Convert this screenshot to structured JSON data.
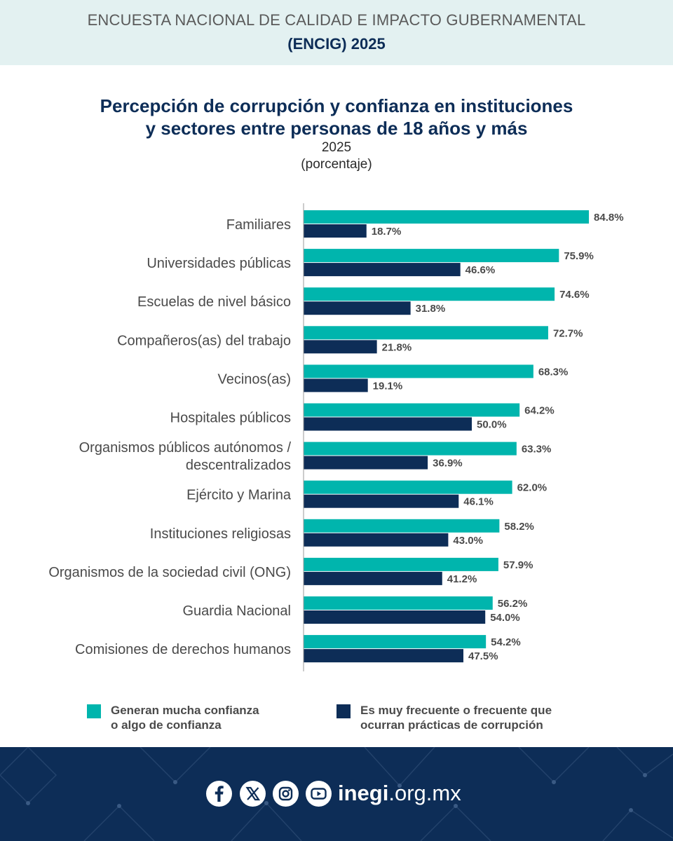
{
  "header": {
    "line1": "ENCUESTA NACIONAL DE CALIDAD E IMPACTO GUBERNAMENTAL",
    "line2": "(ENCIG) 2025"
  },
  "title": {
    "line1": "Percepción de corrupción y confianza en instituciones",
    "line2": "y sectores entre personas de 18 años y más",
    "year": "2025",
    "unit": "(porcentaje)"
  },
  "colors": {
    "confianza": "#00b5ad",
    "corrupcion": "#0d2d57",
    "footer": "#0d2d57",
    "header_band": "#e3f1f1"
  },
  "chart_data": {
    "type": "bar",
    "orientation": "horizontal",
    "categories": [
      "Familiares",
      "Universidades públicas",
      "Escuelas de nivel básico",
      "Compañeros(as) del trabajo",
      "Vecinos(as)",
      "Hospitales públicos",
      "Organismos públicos autónomos / descentralizados",
      "Ejército y Marina",
      "Instituciones religiosas",
      "Organismos de la sociedad civil (ONG)",
      "Guardia Nacional",
      "Comisiones de derechos humanos"
    ],
    "category_lines": [
      [
        "Familiares"
      ],
      [
        "Universidades públicas"
      ],
      [
        "Escuelas de nivel básico"
      ],
      [
        "Compañeros(as) del trabajo"
      ],
      [
        "Vecinos(as)"
      ],
      [
        "Hospitales públicos"
      ],
      [
        "Organismos públicos autónomos /",
        "descentralizados"
      ],
      [
        "Ejército y Marina"
      ],
      [
        "Instituciones religiosas"
      ],
      [
        "Organismos de la sociedad civil (ONG)"
      ],
      [
        "Guardia Nacional"
      ],
      [
        "Comisiones de derechos humanos"
      ]
    ],
    "series": [
      {
        "name": "Generan mucha confianza o algo de confianza",
        "values": [
          84.8,
          75.9,
          74.6,
          72.7,
          68.3,
          64.2,
          63.3,
          62.0,
          58.2,
          57.9,
          56.2,
          54.2
        ],
        "labels": [
          "84.8%",
          "75.9%",
          "74.6%",
          "72.7%",
          "68.3%",
          "64.2%",
          "63.3%",
          "62.0%",
          "58.2%",
          "57.9%",
          "56.2%",
          "54.2%"
        ]
      },
      {
        "name": "Es muy frecuente o frecuente que ocurran prácticas de corrupción",
        "values": [
          18.7,
          46.6,
          31.8,
          21.8,
          19.1,
          50.0,
          36.9,
          46.1,
          43.0,
          41.2,
          54.0,
          47.5
        ],
        "labels": [
          "18.7%",
          "46.6%",
          "31.8%",
          "21.8%",
          "19.1%",
          "50.0%",
          "36.9%",
          "46.1%",
          "43.0%",
          "41.2%",
          "54.0%",
          "47.5%"
        ]
      }
    ],
    "xlim": [
      0,
      100
    ],
    "grid": false,
    "legend": "bottom"
  },
  "legend": {
    "item1_lines": [
      "Generan mucha confianza",
      "o algo de confianza"
    ],
    "item2_lines": [
      "Es muy frecuente o frecuente que",
      "ocurran prácticas de corrupción"
    ]
  },
  "footer": {
    "site_bold": "inegi",
    "site_rest": ".org.mx",
    "icons": [
      "facebook-icon",
      "x-icon",
      "instagram-icon",
      "youtube-icon"
    ]
  }
}
